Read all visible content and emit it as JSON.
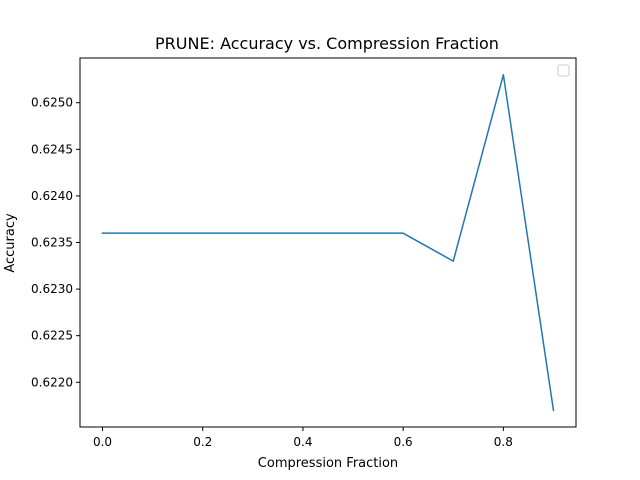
{
  "chart_data": {
    "type": "line",
    "title": "PRUNE: Accuracy vs. Compression Fraction",
    "xlabel": "Compression Fraction",
    "ylabel": "Accuracy",
    "x": [
      0.0,
      0.1,
      0.2,
      0.3,
      0.4,
      0.5,
      0.6,
      0.7,
      0.8,
      0.9
    ],
    "series": [
      {
        "values": [
          0.6236,
          0.6236,
          0.6236,
          0.6236,
          0.6236,
          0.6236,
          0.6236,
          0.6233,
          0.6253,
          0.6217
        ],
        "color": "#1f77b4"
      }
    ],
    "xlim": [
      -0.045,
      0.945
    ],
    "ylim": [
      0.62152,
      0.62548
    ],
    "xticks": [
      0.0,
      0.2,
      0.4,
      0.6,
      0.8
    ],
    "xtick_labels": [
      "0.0",
      "0.2",
      "0.4",
      "0.6",
      "0.8"
    ],
    "yticks": [
      0.622,
      0.6225,
      0.623,
      0.6235,
      0.624,
      0.6245,
      0.625
    ],
    "ytick_labels": [
      "0.6220",
      "0.6225",
      "0.6230",
      "0.6235",
      "0.6240",
      "0.6245",
      "0.6250"
    ],
    "grid": false,
    "legend": {
      "placement": "upper-right",
      "entries": []
    }
  }
}
